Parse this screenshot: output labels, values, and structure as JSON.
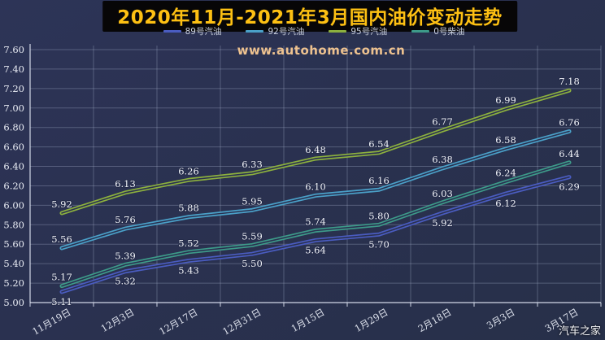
{
  "page": {
    "brand": "汽车之家",
    "background_color": "#2a3150"
  },
  "title": {
    "text": "2020年11月-2021年3月国内油价变动走势",
    "color": "#fdc013",
    "band_color": "#070607"
  },
  "watermark": {
    "text": "www.autohome.com.cn",
    "color": "#eec28f"
  },
  "chart_data": {
    "type": "line",
    "title": "2020年11月-2021年3月国内油价变动走势",
    "xlabel": "",
    "ylabel": "",
    "ylim": [
      5.0,
      7.6
    ],
    "ytick_step": 0.2,
    "grid": true,
    "legend_position": "top",
    "categories": [
      "11月19日",
      "12月3日",
      "12月17日",
      "12月31日",
      "1月15日",
      "1月29日",
      "2月18日",
      "3月3日",
      "3月17日"
    ],
    "series": [
      {
        "name": "89号汽油",
        "color": "#4a5cc0",
        "label_position": "below",
        "values": [
          5.11,
          5.32,
          5.43,
          5.5,
          5.64,
          5.7,
          5.92,
          6.12,
          6.29
        ]
      },
      {
        "name": "92号汽油",
        "color": "#4aa0c8",
        "label_position": "above",
        "values": [
          5.56,
          5.76,
          5.88,
          5.95,
          6.1,
          6.16,
          6.38,
          6.58,
          6.76
        ]
      },
      {
        "name": "95号汽油",
        "color": "#8cb03e",
        "label_position": "above",
        "values": [
          5.92,
          6.13,
          6.26,
          6.33,
          6.48,
          6.54,
          6.77,
          6.99,
          7.18
        ]
      },
      {
        "name": "0号柴油",
        "color": "#3d9a89",
        "label_position": "above",
        "values": [
          5.17,
          5.39,
          5.52,
          5.59,
          5.74,
          5.8,
          6.03,
          6.24,
          6.44
        ]
      }
    ]
  }
}
